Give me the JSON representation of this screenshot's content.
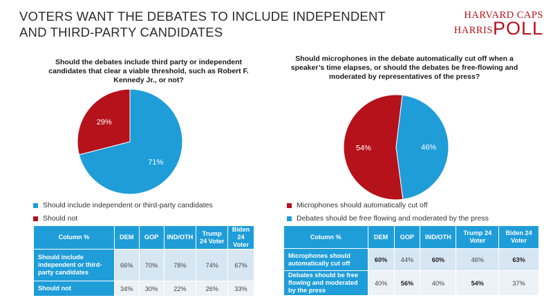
{
  "title": "VOTERS WANT THE DEBATES TO INCLUDE INDEPENDENT AND THIRD-PARTY CANDIDATES",
  "logo": {
    "line1": "HARVARD CAPS",
    "line2": "HARRIS",
    "line3": "POLL"
  },
  "colors": {
    "blue": "#1f9dd9",
    "red": "#b5121b",
    "table_header": "#1f9dd9"
  },
  "chart_data": [
    {
      "type": "pie",
      "title": "Should the debates include third party or independent candidates that clear a viable threshold, such as Robert F. Kennedy Jr., or not?",
      "labels": [
        "Should include independent or third-party candidates",
        "Should not"
      ],
      "values": [
        71,
        29
      ],
      "value_labels": [
        "71%",
        "29%"
      ],
      "colors": [
        "#1f9dd9",
        "#b5121b"
      ],
      "legend_position": "bottom-left"
    },
    {
      "type": "pie",
      "title": "Should microphones in the debate automatically cut off when a speaker’s time elapses, or should the debates be free-flowing and moderated by representatives of the press?",
      "labels": [
        "Microphones should automatically cut off",
        "Debates should be free flowing and moderated by the press"
      ],
      "values": [
        54,
        46
      ],
      "value_labels": [
        "54%",
        "46%"
      ],
      "colors": [
        "#b5121b",
        "#1f9dd9"
      ],
      "legend_position": "bottom-left"
    },
    {
      "type": "table",
      "columns": [
        "Column %",
        "DEM",
        "GOP",
        "IND/OTH",
        "Trump 24 Voter",
        "Biden 24 Voter"
      ],
      "rows": [
        {
          "label": "Should include independent or third-party candidates",
          "values": [
            "66%",
            "70%",
            "78%",
            "74%",
            "67%"
          ]
        },
        {
          "label": "Should not",
          "values": [
            "34%",
            "30%",
            "22%",
            "26%",
            "33%"
          ]
        }
      ]
    },
    {
      "type": "table",
      "columns": [
        "Column %",
        "DEM",
        "GOP",
        "IND/OTH",
        "Trump 24 Voter",
        "Biden 24 Voter"
      ],
      "rows": [
        {
          "label": "Microphones should automatically cut off",
          "values": [
            "60%",
            "44%",
            "60%",
            "46%",
            "63%"
          ],
          "bold": [
            true,
            false,
            true,
            false,
            true
          ]
        },
        {
          "label": "Debates should be free flowing and moderated by the press",
          "values": [
            "40%",
            "56%",
            "40%",
            "54%",
            "37%"
          ],
          "bold": [
            false,
            true,
            false,
            true,
            false
          ]
        }
      ]
    }
  ]
}
